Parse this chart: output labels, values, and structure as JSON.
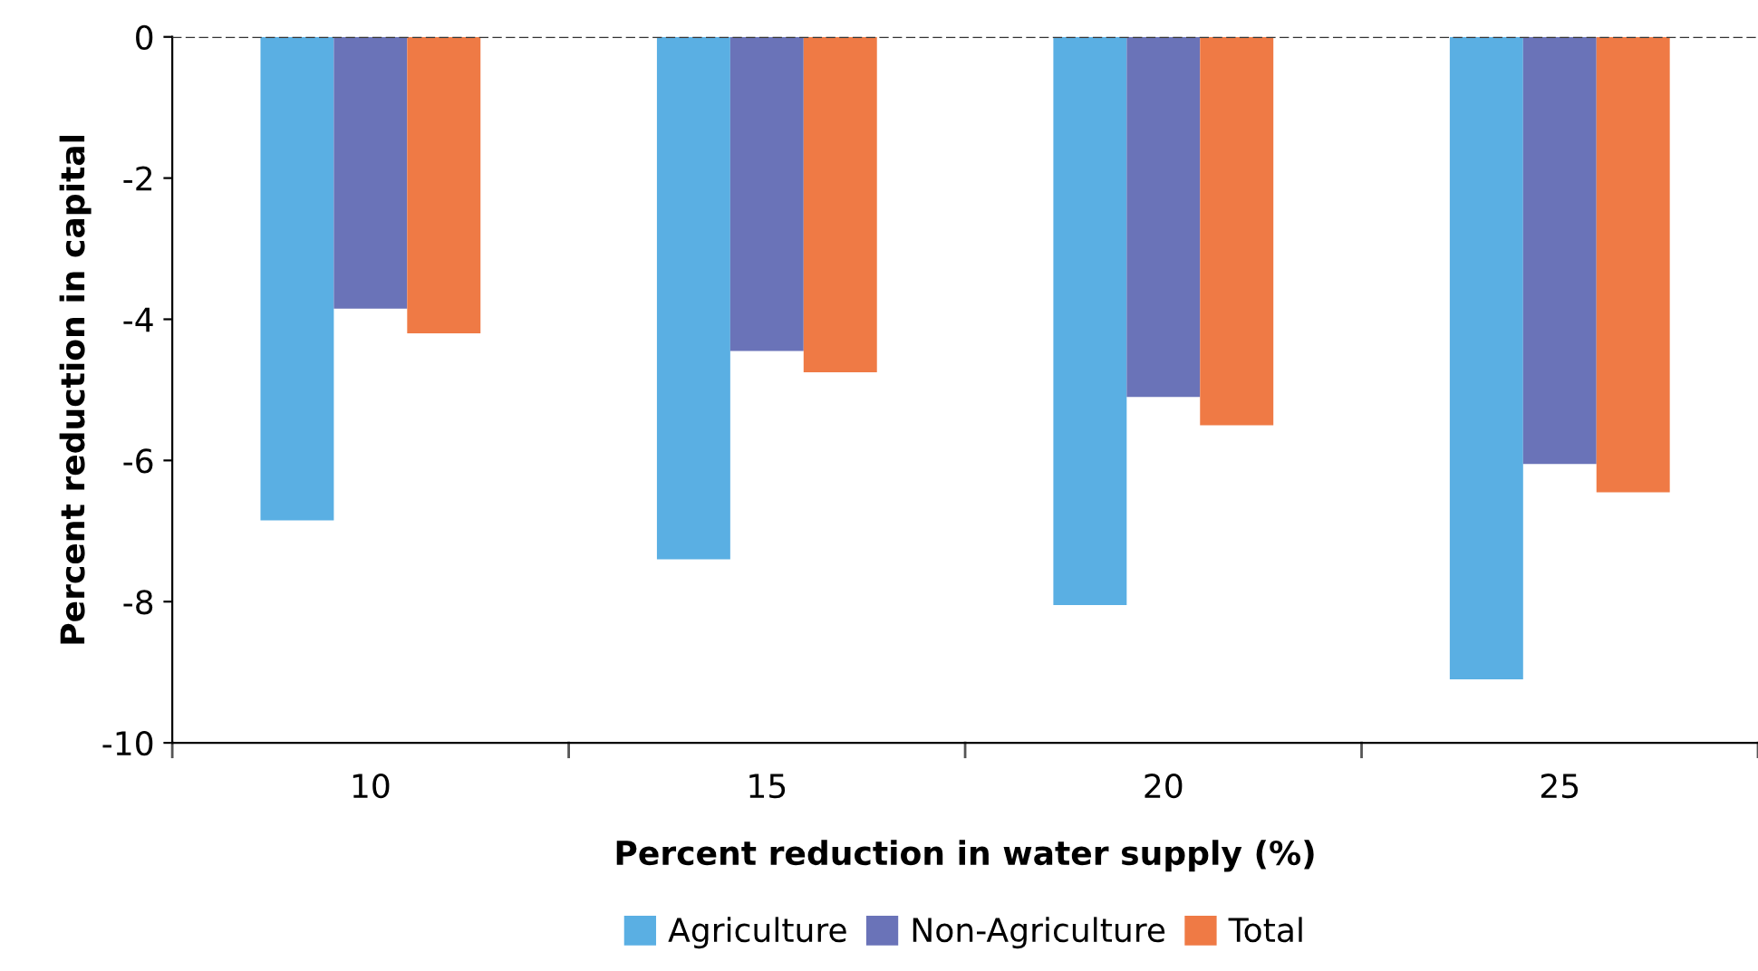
{
  "chart_data": {
    "type": "bar",
    "xlabel": "Percent reduction in water supply (%)",
    "ylabel": "Percent reduction in capital",
    "categories": [
      "10",
      "15",
      "20",
      "25"
    ],
    "series": [
      {
        "name": "Agriculture",
        "color": "#5aafe3",
        "values": [
          -6.85,
          -7.4,
          -8.05,
          -9.1
        ]
      },
      {
        "name": "Non-Agriculture",
        "color": "#6a73b8",
        "values": [
          -3.85,
          -4.45,
          -5.1,
          -6.05
        ]
      },
      {
        "name": "Total",
        "color": "#ef7a45",
        "values": [
          -4.2,
          -4.75,
          -5.5,
          -6.45
        ]
      }
    ],
    "ylim": [
      -10,
      0
    ],
    "yticks": [
      -10,
      -8,
      -6,
      -4,
      -2,
      0
    ],
    "ref_lines": [
      {
        "axis": "y",
        "value": 0,
        "label": null,
        "color": "#333333",
        "line_style": "dashed"
      }
    ],
    "legend": "bottom",
    "grid": false
  }
}
